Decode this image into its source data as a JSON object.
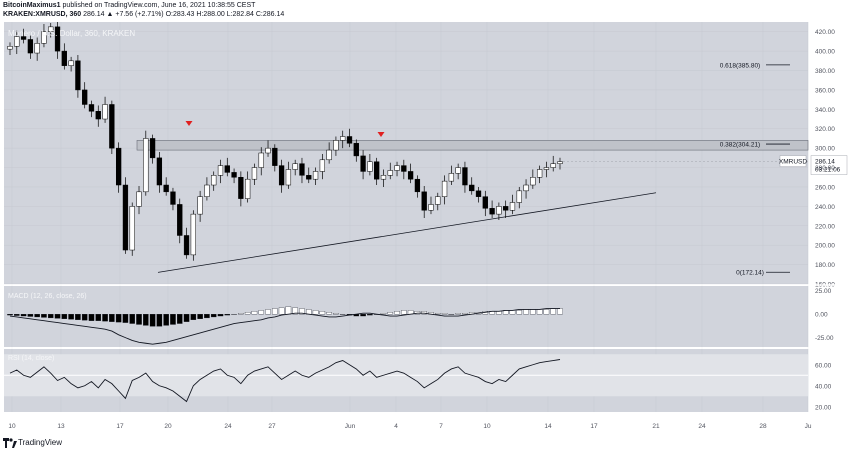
{
  "header": {
    "author": "BitcoinMaximus1",
    "published": "published on TradingView.com, June 16, 2021 10:38:55 CEST",
    "symbol_line": "KRAKEN:XMRUSD, 360",
    "change": "286.14 ▲ +7.56 (+2.71%)",
    "ohlc": "O:283.43 H:288.00 L:282.84 C:286.14"
  },
  "watermark": "Monero / U.S. Dollar, 360, KRAKEN",
  "footer": {
    "brand": "TradingView"
  },
  "colors": {
    "background": "#d1d4dc",
    "candle_up": "#ffffff",
    "candle_down": "#000000",
    "wick": "#000000",
    "resistance_box": "#bfc2c9",
    "marker": "#e02020",
    "price_label_bg": "#ffffff"
  },
  "chart_data": [
    {
      "type": "candlestick",
      "panel": "price",
      "symbol": "XMRUSD",
      "current_price_label": "286.14",
      "countdown_label": "03:21:06",
      "ylim": [
        160,
        430
      ],
      "y_ticks": [
        "420.00",
        "400.00",
        "380.00",
        "360.00",
        "340.00",
        "320.00",
        "300.00",
        "280.00",
        "260.00",
        "240.00",
        "220.00",
        "200.00",
        "180.00",
        "160.00"
      ],
      "x_ticks": [
        "10",
        "13",
        "17",
        "20",
        "24",
        "27",
        "Jun",
        "4",
        "7",
        "10",
        "14",
        "17",
        "21",
        "24",
        "28",
        "Ju"
      ],
      "close_path": [
        405,
        415,
        412,
        398,
        408,
        420,
        425,
        400,
        385,
        390,
        360,
        345,
        338,
        330,
        345,
        300,
        262,
        195,
        240,
        255,
        310,
        290,
        262,
        255,
        242,
        210,
        190,
        232,
        250,
        262,
        272,
        282,
        275,
        270,
        248,
        268,
        280,
        295,
        300,
        282,
        262,
        278,
        284,
        272,
        268,
        276,
        288,
        298,
        308,
        312,
        305,
        292,
        276,
        286,
        268,
        272,
        277,
        282,
        276,
        268,
        255,
        236,
        242,
        250,
        266,
        274,
        280,
        262,
        256,
        250,
        238,
        232,
        240,
        236,
        244,
        256,
        262,
        270,
        278,
        280,
        284,
        286.14
      ],
      "fibonacci": [
        {
          "label": "0.618(385.80)",
          "value": 385.8
        },
        {
          "label": "0.382(304.21)",
          "value": 304.21
        },
        {
          "label": "0(172.14)",
          "value": 172.14
        }
      ],
      "resistance_zone": [
        298,
        308
      ],
      "trendline_values": [
        172,
        254
      ],
      "markers": [
        "bearish-arrow",
        "bearish-arrow"
      ]
    },
    {
      "type": "histogram",
      "panel": "macd",
      "title": "MACD (12, 26, close, 26)",
      "ylim": [
        -35,
        30
      ],
      "y_ticks": [
        "25.00",
        "0.00",
        "-25.00"
      ],
      "histogram_values": [
        -1,
        -1.5,
        -2,
        -2.5,
        -3,
        -3.5,
        -4,
        -4.5,
        -5,
        -5.5,
        -6,
        -6.5,
        -7,
        -7,
        -7.5,
        -8,
        -8.5,
        -9,
        -10,
        -11,
        -12,
        -13,
        -13,
        -12,
        -11,
        -10,
        -8,
        -6,
        -5,
        -4,
        -3,
        -2,
        -1,
        0,
        1,
        2,
        3,
        4,
        5,
        6,
        7,
        8,
        7,
        6,
        5,
        4,
        3,
        2,
        1,
        0,
        -1,
        -2,
        -2,
        -1,
        0,
        1,
        2,
        3,
        4,
        4,
        3,
        3,
        2,
        1,
        1,
        0,
        1,
        1,
        2,
        2,
        3,
        3,
        3,
        4,
        4,
        4,
        5,
        5,
        5,
        5,
        6,
        6
      ],
      "macd_line": [
        -2,
        -3,
        -4,
        -5,
        -6,
        -7,
        -8,
        -9,
        -10,
        -11,
        -12,
        -13,
        -14,
        -15,
        -16,
        -18,
        -22,
        -25,
        -28,
        -30,
        -31,
        -32,
        -31,
        -30,
        -28,
        -26,
        -24,
        -22,
        -20,
        -18,
        -16,
        -14,
        -12,
        -10,
        -9,
        -8,
        -7,
        -6,
        -4,
        -3,
        -1,
        0,
        1,
        1,
        0,
        -1,
        -2,
        -3,
        -3,
        -2,
        -1,
        0,
        1,
        1,
        0,
        -1,
        -2,
        -2,
        -1,
        0,
        1,
        1,
        0,
        -1,
        -2,
        -2,
        -2,
        -1,
        0,
        1,
        2,
        3,
        3,
        4,
        4,
        5,
        5,
        5,
        5,
        6,
        6,
        6
      ]
    },
    {
      "type": "line",
      "panel": "rsi",
      "title": "RSI (14, close)",
      "ylim": [
        15,
        75
      ],
      "y_ticks": [
        "60.00",
        "40.00",
        "20.00"
      ],
      "band": [
        30,
        70
      ],
      "midline": 50,
      "rsi_values": [
        52,
        55,
        50,
        48,
        53,
        58,
        52,
        45,
        48,
        42,
        38,
        40,
        44,
        38,
        46,
        42,
        35,
        28,
        45,
        48,
        52,
        44,
        40,
        38,
        35,
        30,
        25,
        40,
        46,
        50,
        54,
        56,
        50,
        48,
        42,
        50,
        54,
        56,
        58,
        52,
        46,
        50,
        54,
        50,
        48,
        52,
        55,
        58,
        62,
        64,
        60,
        56,
        50,
        54,
        48,
        50,
        52,
        54,
        52,
        48,
        44,
        38,
        42,
        46,
        52,
        56,
        58,
        52,
        50,
        48,
        44,
        42,
        46,
        44,
        50,
        56,
        58,
        60,
        62,
        63,
        64,
        65
      ]
    }
  ]
}
